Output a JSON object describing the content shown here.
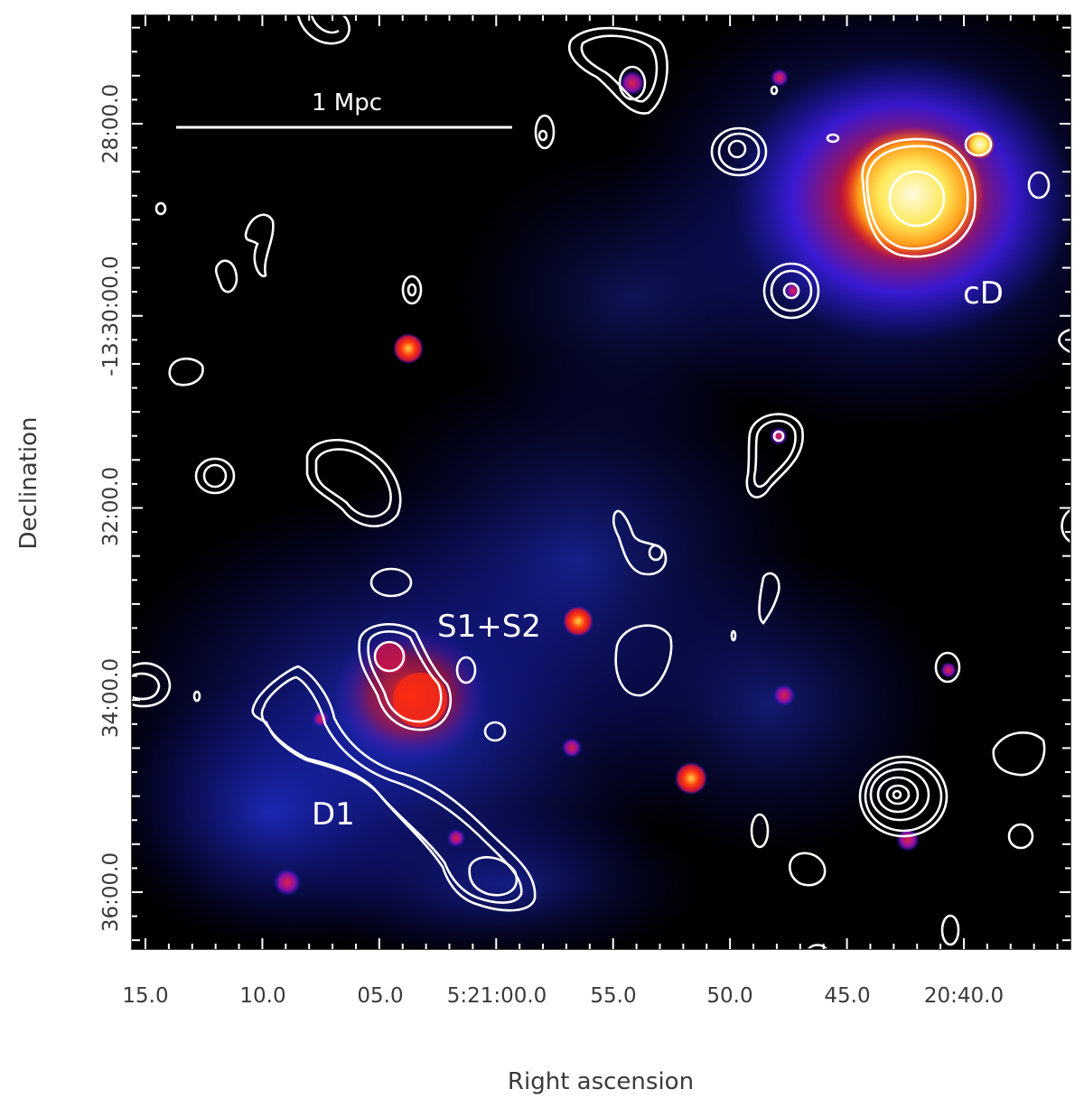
{
  "figure": {
    "xlabel": "Right ascension",
    "ylabel": "Declination",
    "xticks": [
      "15.0",
      "10.0",
      "05.0",
      "5:21:00.0",
      "55.0",
      "50.0",
      "45.0",
      "20:40.0"
    ],
    "yticks": [
      "28:00.0",
      "-13:30:00.0",
      "32:00.0",
      "34:00.0",
      "36:00.0"
    ],
    "scale_bar": "1 Mpc",
    "annotations": {
      "cd": "cD",
      "s1s2": "S1+S2",
      "d1": "D1"
    },
    "colors": {
      "background": "#000000",
      "contours": "#ffffff",
      "diffuse_emission": "#1a2bff",
      "source": "#ff2a00",
      "bright_core": "#fff3a0"
    }
  }
}
